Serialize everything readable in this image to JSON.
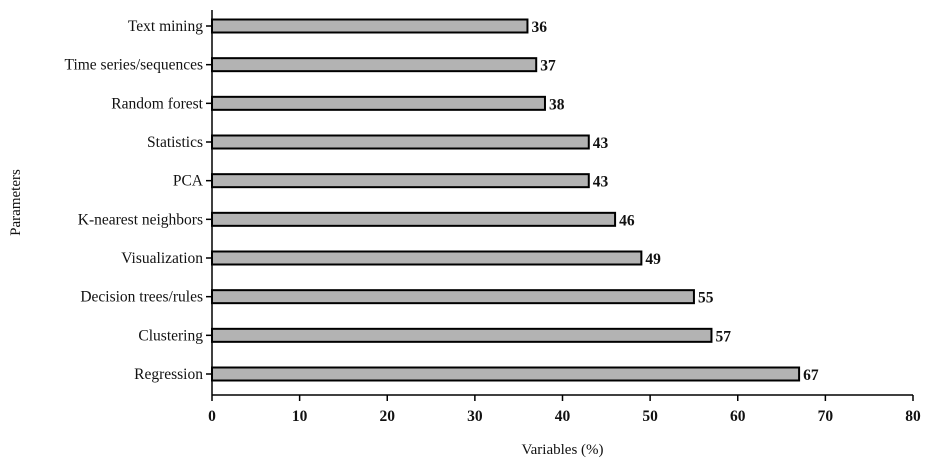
{
  "chart_data": {
    "type": "bar",
    "orientation": "horizontal",
    "categories": [
      "Text mining",
      "Time series/sequences",
      "Random forest",
      "Statistics",
      "PCA",
      "K-nearest neighbors",
      "Visualization",
      "Decision trees/rules",
      "Clustering",
      "Regression"
    ],
    "values": [
      36,
      37,
      38,
      43,
      43,
      46,
      49,
      55,
      57,
      67
    ],
    "value_labels": [
      "36",
      "37",
      "38",
      "43",
      "43",
      "46",
      "49",
      "55",
      "57",
      "67"
    ],
    "xlabel": "Variables (%)",
    "ylabel": "Parameters",
    "xlim": [
      0,
      80
    ],
    "xticks": [
      0,
      10,
      20,
      30,
      40,
      50,
      60,
      70,
      80
    ],
    "xtick_labels": [
      "0",
      "10",
      "20",
      "30",
      "40",
      "50",
      "60",
      "70",
      "80"
    ],
    "grid": false,
    "bar_color": "#b3b3b3",
    "bar_edge_color": "#000000"
  }
}
